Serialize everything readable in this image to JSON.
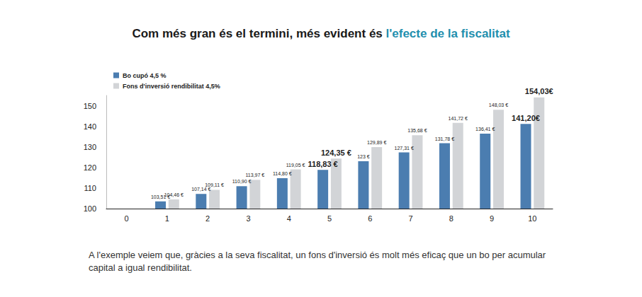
{
  "chart_data": {
    "type": "bar",
    "title": "Com més gran és el termini, més evident és l'efecte de la fiscalitat",
    "title_highlight": "l'efecte de la fiscalitat",
    "note": "A l'exemple veiem que, gràcies a la seva fiscalitat, un fons d'inversió és molt més eficaç que un bo per acumular capital a igual rendibilitat.",
    "categories": [
      "0",
      "1",
      "2",
      "3",
      "4",
      "5",
      "6",
      "7",
      "8",
      "9",
      "10"
    ],
    "series": [
      {
        "name": "Bo cupó 4,5 %",
        "color": "#4b7db0",
        "values": [
          null,
          103.51,
          107.14,
          110.9,
          114.8,
          118.83,
          123,
          127.31,
          131.78,
          136.41,
          141.2
        ],
        "value_labels": [
          null,
          "103,51 €",
          "107,14 €",
          "110,90 €",
          "114,80 €",
          "118,83 €",
          "123 €",
          "127,31 €",
          "131,78 €",
          "136,41 €",
          "141,20€"
        ]
      },
      {
        "name": "Fons d'inversió rendibilitat 4,5%",
        "color": "#d2d4d7",
        "values": [
          null,
          104.46,
          109.11,
          113.97,
          119.05,
          124.35,
          129.89,
          135.68,
          141.72,
          148.03,
          154.03
        ],
        "value_labels": [
          null,
          "104,46 €",
          "109,11 €",
          "113,97 €",
          "119,05 €",
          "124,35 €",
          "129,89 €",
          "135,68 €",
          "141,72 €",
          "148,03 €",
          "154,03€"
        ]
      }
    ],
    "ylim": [
      100,
      155
    ],
    "yticks": [
      100,
      110,
      120,
      130,
      140,
      150
    ],
    "grid": false,
    "legend": "top-left",
    "data_labels": true
  }
}
